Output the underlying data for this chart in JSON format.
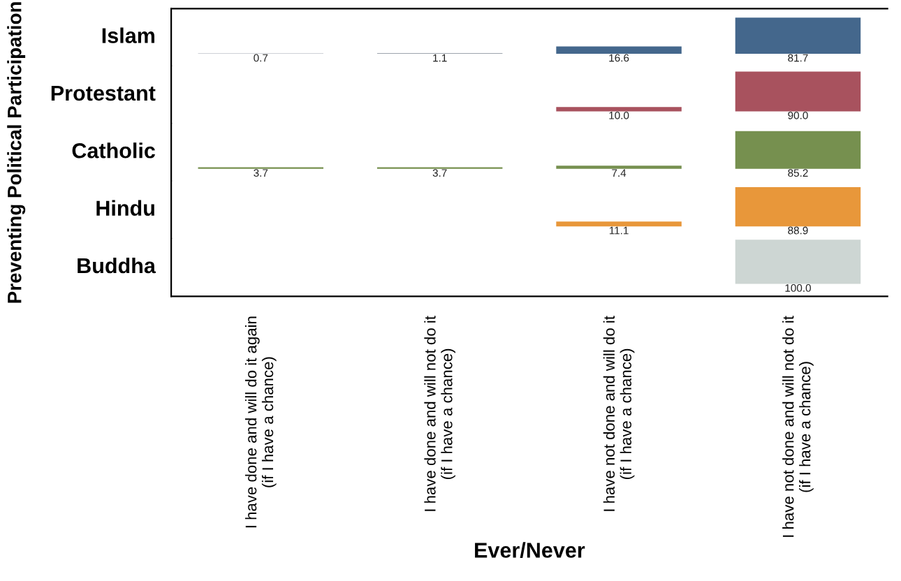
{
  "chart_data": [
    {
      "type": "bar",
      "ylabel": "Islam",
      "categories": [
        "I have done and will do it again\n(if I have a chance)",
        "I have done and will not do it\n(if I have a chance)",
        "I have not done and will do it\n(if I have a chance)",
        "I have not done and will not do it\n(if I have a chance)"
      ],
      "values": [
        0.7,
        1.1,
        16.6,
        81.7
      ],
      "value_labels": [
        "0.7",
        "1.1",
        "16.6",
        "81.7"
      ],
      "colors": [
        "#3d4a5c",
        "#3d4a5c",
        "#44678c",
        "#44678c"
      ],
      "tick_labels": false
    },
    {
      "type": "bar",
      "ylabel": "Protestant",
      "categories": [
        "I have done and will do it again\n(if I have a chance)",
        "I have done and will not do it\n(if I have a chance)",
        "I have not done and will do it\n(if I have a chance)",
        "I have not done and will not do it\n(if I have a chance)"
      ],
      "values": [
        null,
        null,
        10.0,
        90.0
      ],
      "value_labels": [
        null,
        null,
        "10.0",
        "90.0"
      ],
      "colors": [
        "#a8525e",
        "#a8525e",
        "#a8525e",
        "#a8525e"
      ],
      "tick_labels": false
    },
    {
      "type": "bar",
      "ylabel": "Catholic",
      "categories": [
        "I have done and will do it again\n(if I have a chance)",
        "I have done and will not do it\n(if I have a chance)",
        "I have not done and will do it\n(if I have a chance)",
        "I have not done and will not do it\n(if I have a chance)"
      ],
      "values": [
        3.7,
        3.7,
        7.4,
        85.2
      ],
      "value_labels": [
        "3.7",
        "3.7",
        "7.4",
        "85.2"
      ],
      "colors": [
        "#76904f",
        "#76904f",
        "#76904f",
        "#76904f"
      ],
      "tick_labels": false,
      "annotations": [
        "Preventing Political Participation"
      ]
    },
    {
      "type": "bar",
      "ylabel": "Hindu",
      "categories": [
        "I have done and will do it again\n(if I have a chance)",
        "I have done and will not do it\n(if I have a chance)",
        "I have not done and will do it\n(if I have a chance)",
        "I have not done and will not do it\n(if I have a chance)"
      ],
      "values": [
        null,
        null,
        11.1,
        88.9
      ],
      "value_labels": [
        null,
        null,
        "11.1",
        "88.9"
      ],
      "colors": [
        "#e8973a",
        "#e8973a",
        "#e8973a",
        "#e8973a"
      ],
      "tick_labels": false
    },
    {
      "type": "bar",
      "ylabel": "Buddha",
      "xlabel": "Ever/Never",
      "categories": [
        "I have done and will do it again\n(if I have a chance)",
        "I have done and will not do it\n(if I have a chance)",
        "I have not done and will do it\n(if I have a chance)",
        "I have not done and will not do it\n(if I have a chance)"
      ],
      "values": [
        null,
        null,
        null,
        100.0
      ],
      "value_labels": [
        null,
        null,
        null,
        "100.0"
      ],
      "colors": [
        "#cdd6d3",
        "#cdd6d3",
        "#cdd6d3",
        "#cdd6d3"
      ],
      "tick_labels": "x"
    }
  ]
}
